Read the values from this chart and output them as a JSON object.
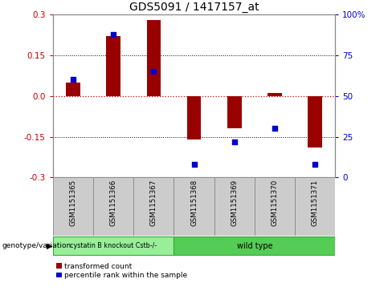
{
  "title": "GDS5091 / 1417157_at",
  "samples": [
    "GSM1151365",
    "GSM1151366",
    "GSM1151367",
    "GSM1151368",
    "GSM1151369",
    "GSM1151370",
    "GSM1151371"
  ],
  "red_bars": [
    0.05,
    0.22,
    0.28,
    -0.16,
    -0.12,
    0.01,
    -0.19
  ],
  "blue_dots_pct": [
    0.6,
    0.88,
    0.65,
    0.08,
    0.22,
    0.3,
    0.08
  ],
  "ylim": [
    -0.3,
    0.3
  ],
  "yticks_left": [
    -0.3,
    -0.15,
    0.0,
    0.15,
    0.3
  ],
  "yticks_right": [
    0,
    25,
    50,
    75,
    100
  ],
  "yticks_right_labels": [
    "0",
    "25",
    "50",
    "75",
    "100%"
  ],
  "bar_color": "#990000",
  "dot_color": "#0000cc",
  "zero_line_color": "#cc0000",
  "hline_color": "#000000",
  "group1_label": "cystatin B knockout Cstb-/-",
  "group2_label": "wild type",
  "group1_color": "#99ee99",
  "group2_color": "#55cc55",
  "group_row_label": "genotype/variation",
  "legend_red": "transformed count",
  "legend_blue": "percentile rank within the sample",
  "bg_color": "#ffffff",
  "plot_bg_color": "#ffffff",
  "tick_bg_color": "#cccccc",
  "title_fontsize": 10,
  "axis_fontsize": 7.5,
  "dot_size": 18,
  "bar_width": 0.35,
  "group1_count": 3,
  "group2_count": 4
}
